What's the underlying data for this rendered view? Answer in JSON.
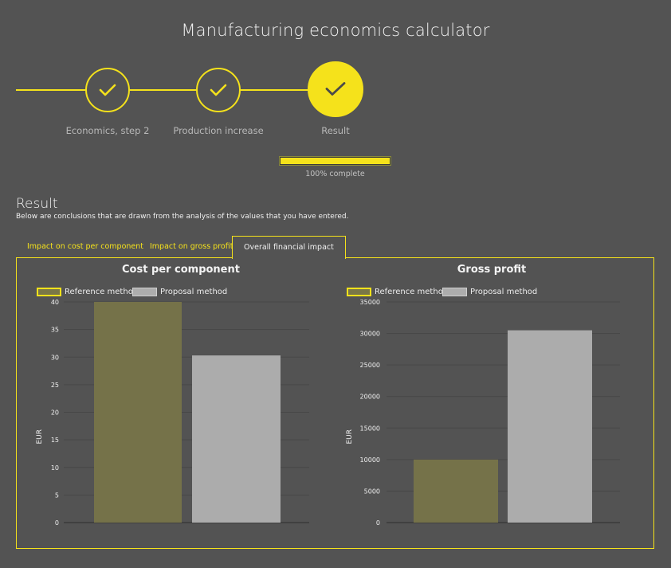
{
  "app": {
    "title": "Manufacturing economics calculator"
  },
  "stepper": {
    "steps": [
      {
        "label": "Economics, step 2",
        "state": "done"
      },
      {
        "label": "Production increase",
        "state": "done"
      },
      {
        "label": "Result",
        "state": "current"
      }
    ]
  },
  "progress": {
    "value": 1.0,
    "label": "100% complete"
  },
  "result": {
    "title": "Result",
    "description": "Below are conclusions that are drawn from the analysis of the values that you have entered."
  },
  "tabs": [
    {
      "label": "Impact on cost per component",
      "active": false
    },
    {
      "label": "Impact on gross profit",
      "active": false
    },
    {
      "label": "Overall financial impact",
      "active": true
    }
  ],
  "colors": {
    "accent": "#f5e21b",
    "background": "#535353",
    "reference_bar": "#757249",
    "proposal_bar": "#acacac"
  },
  "chart_data": [
    {
      "type": "bar",
      "title": "Cost per component",
      "ylabel": "EUR",
      "xlabel": "",
      "categories": [
        ""
      ],
      "series": [
        {
          "name": "Reference method",
          "values": [
            40
          ]
        },
        {
          "name": "Proposal method",
          "values": [
            30.3
          ]
        }
      ],
      "ylim": [
        0,
        40
      ],
      "yticks": [
        0,
        5,
        10,
        15,
        20,
        25,
        30,
        35,
        40
      ],
      "legend": "top-left",
      "grid": true
    },
    {
      "type": "bar",
      "title": "Gross profit",
      "ylabel": "EUR",
      "xlabel": "",
      "categories": [
        ""
      ],
      "series": [
        {
          "name": "Reference method",
          "values": [
            10000
          ]
        },
        {
          "name": "Proposal method",
          "values": [
            30500
          ]
        }
      ],
      "ylim": [
        0,
        35000
      ],
      "yticks": [
        0,
        5000,
        10000,
        15000,
        20000,
        25000,
        30000,
        35000
      ],
      "legend": "top-left",
      "grid": true
    }
  ]
}
